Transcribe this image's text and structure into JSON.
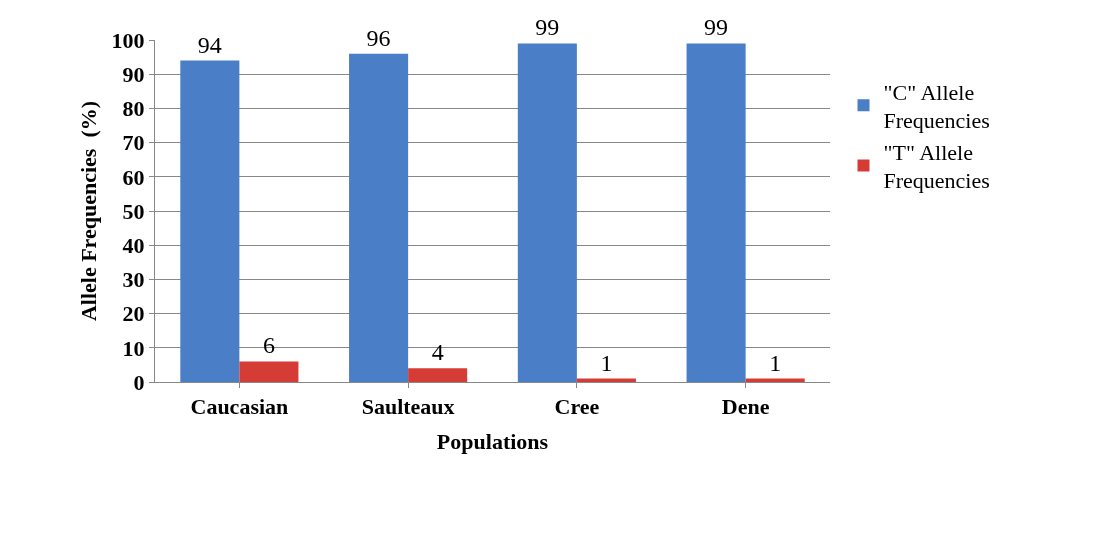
{
  "chart_data": {
    "type": "bar",
    "xlabel": "Populations",
    "ylabel": "Allele Frequencies  (%)",
    "categories": [
      "Caucasian",
      "Saulteaux",
      "Cree",
      "Dene"
    ],
    "series": [
      {
        "name": "\"C\" Allele Frequencies",
        "color": "#4a7ec6",
        "values": [
          94,
          96,
          99,
          99
        ]
      },
      {
        "name": "\"T\" Allele Frequencies",
        "color": "#d63c36",
        "values": [
          6,
          4,
          1,
          1
        ]
      }
    ],
    "ylim": [
      0,
      100
    ],
    "yticks": [
      0,
      10,
      20,
      30,
      40,
      50,
      60,
      70,
      80,
      90,
      100
    ],
    "grid": "y",
    "legend": "right",
    "data_labels": true
  }
}
